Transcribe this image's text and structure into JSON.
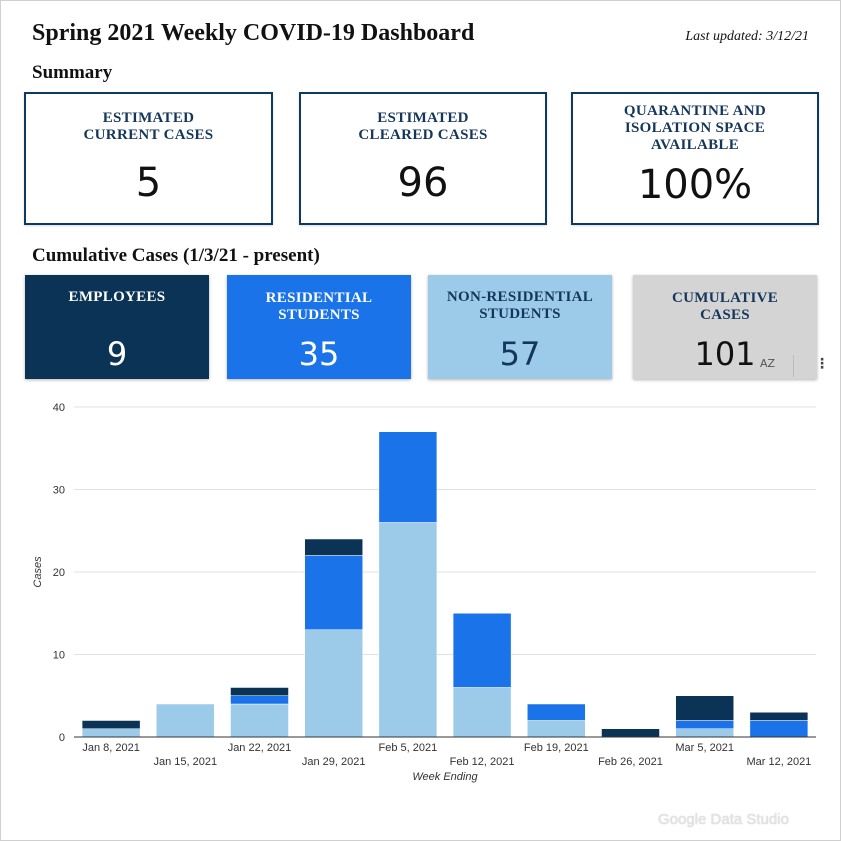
{
  "header": {
    "title": "Spring 2021 Weekly COVID-19 Dashboard",
    "last_updated": "Last updated: 3/12/21"
  },
  "summary": {
    "heading": "Summary",
    "cards": [
      {
        "label_line1": "ESTIMATED",
        "label_line2": "CURRENT CASES",
        "label_line3": "",
        "value": "5"
      },
      {
        "label_line1": "ESTIMATED",
        "label_line2": "CLEARED CASES",
        "label_line3": "",
        "value": "96"
      },
      {
        "label_line1": "QUARANTINE AND",
        "label_line2": "ISOLATION SPACE",
        "label_line3": "AVAILABLE",
        "value": "100%"
      }
    ]
  },
  "cumulative": {
    "heading": "Cumulative Cases (1/3/21 - present)",
    "cards": [
      {
        "label_line1": "EMPLOYEES",
        "label_line2": "",
        "value": "9",
        "bg": "#0b3356",
        "fg": "#ffffff"
      },
      {
        "label_line1": "RESIDENTIAL",
        "label_line2": "STUDENTS",
        "value": "35",
        "bg": "#1a73e8",
        "fg": "#ffffff"
      },
      {
        "label_line1": "NON-RESIDENTIAL",
        "label_line2": "STUDENTS",
        "value": "57",
        "bg": "#9ccbea",
        "fg": "#14365a"
      },
      {
        "label_line1": "CUMULATIVE",
        "label_line2": "CASES",
        "value": "101",
        "bg": "#d4d4d4",
        "fg": "#14365a"
      }
    ],
    "sort_icon": "AZ",
    "more_icon": "⋮"
  },
  "chart_data": {
    "type": "bar",
    "stacked": true,
    "categories": [
      "Jan 8, 2021",
      "Jan 15, 2021",
      "Jan 22, 2021",
      "Jan 29, 2021",
      "Feb 5, 2021",
      "Feb 12, 2021",
      "Feb 19, 2021",
      "Feb 26, 2021",
      "Mar 5, 2021",
      "Mar 12, 2021"
    ],
    "series": [
      {
        "color": "#9ccbea",
        "values": [
          1,
          4,
          4,
          13,
          26,
          6,
          2,
          0,
          1,
          0
        ]
      },
      {
        "color": "#1a73e8",
        "values": [
          0,
          0,
          1,
          9,
          11,
          9,
          2,
          0,
          1,
          2
        ]
      },
      {
        "color": "#0b3356",
        "values": [
          1,
          0,
          1,
          2,
          0,
          0,
          0,
          1,
          3,
          1
        ]
      }
    ],
    "xlabel": "Week Ending",
    "ylabel": "Cases",
    "ylim": [
      0,
      40
    ],
    "yticks": [
      0,
      10,
      20,
      30,
      40
    ],
    "grid": true,
    "legend": "none"
  },
  "footer": {
    "watermark": "Google Data Studio"
  }
}
